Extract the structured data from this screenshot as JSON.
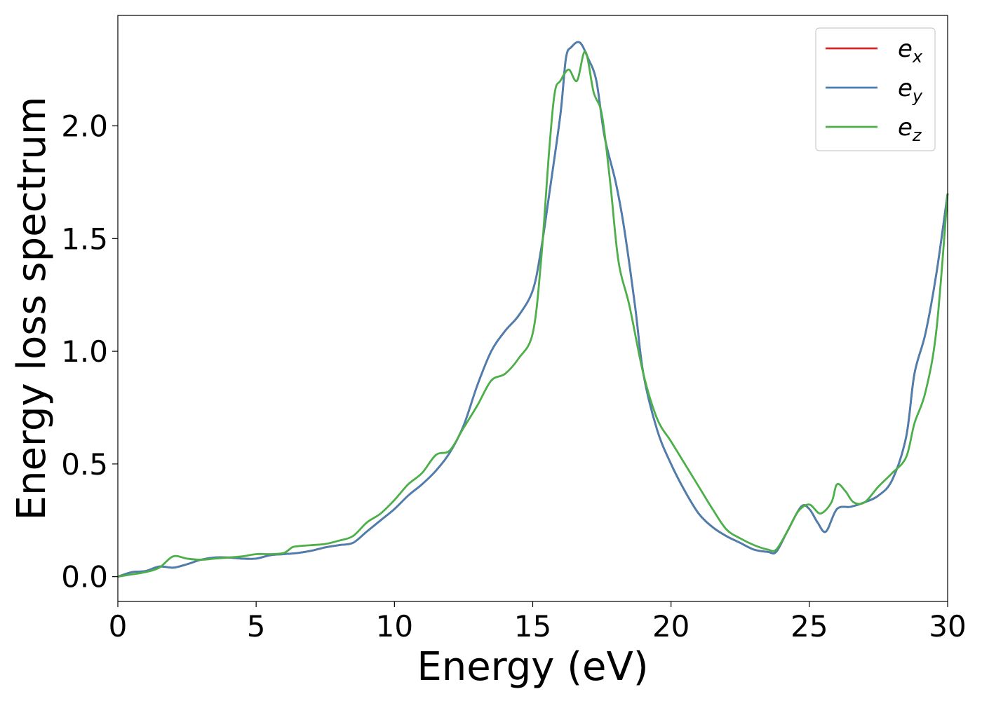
{
  "chart_data": {
    "type": "line",
    "title": "",
    "xlabel": "Energy (eV)",
    "ylabel": "Energy loss spectrum",
    "xlim": [
      0,
      30
    ],
    "ylim": [
      -0.11,
      2.49
    ],
    "xticks": [
      0,
      5,
      10,
      15,
      20,
      25,
      30
    ],
    "xtick_labels": [
      "0",
      "5",
      "10",
      "15",
      "20",
      "25",
      "30"
    ],
    "yticks": [
      0.0,
      0.5,
      1.0,
      1.5,
      2.0
    ],
    "ytick_labels": [
      "0.0",
      "0.5",
      "1.0",
      "1.5",
      "2.0"
    ],
    "grid": false,
    "legend": {
      "placement": "top-right"
    },
    "series": [
      {
        "name": "e_x",
        "label_base": "e",
        "label_sub": "x",
        "color": "#d62728",
        "points": [
          [
            0,
            0.0
          ],
          [
            0.5,
            0.02
          ],
          [
            1,
            0.025
          ],
          [
            1.5,
            0.045
          ],
          [
            2,
            0.04
          ],
          [
            2.5,
            0.055
          ],
          [
            3,
            0.075
          ],
          [
            3.5,
            0.085
          ],
          [
            4,
            0.085
          ],
          [
            4.5,
            0.08
          ],
          [
            5,
            0.08
          ],
          [
            5.5,
            0.095
          ],
          [
            6,
            0.1
          ],
          [
            6.5,
            0.105
          ],
          [
            7,
            0.115
          ],
          [
            7.5,
            0.13
          ],
          [
            8,
            0.14
          ],
          [
            8.5,
            0.15
          ],
          [
            9,
            0.2
          ],
          [
            9.5,
            0.25
          ],
          [
            10,
            0.3
          ],
          [
            10.5,
            0.36
          ],
          [
            11,
            0.41
          ],
          [
            11.5,
            0.47
          ],
          [
            12,
            0.55
          ],
          [
            12.5,
            0.67
          ],
          [
            13,
            0.85
          ],
          [
            13.5,
            1.0
          ],
          [
            14,
            1.09
          ],
          [
            14.5,
            1.16
          ],
          [
            15,
            1.27
          ],
          [
            15.3,
            1.45
          ],
          [
            15.6,
            1.7
          ],
          [
            16,
            2.05
          ],
          [
            16.2,
            2.3
          ],
          [
            16.4,
            2.35
          ],
          [
            16.7,
            2.37
          ],
          [
            17,
            2.3
          ],
          [
            17.3,
            2.2
          ],
          [
            17.6,
            1.95
          ],
          [
            18,
            1.75
          ],
          [
            18.3,
            1.55
          ],
          [
            18.7,
            1.2
          ],
          [
            19,
            0.9
          ],
          [
            19.5,
            0.65
          ],
          [
            20,
            0.5
          ],
          [
            20.5,
            0.38
          ],
          [
            21,
            0.28
          ],
          [
            21.5,
            0.22
          ],
          [
            22,
            0.18
          ],
          [
            22.5,
            0.15
          ],
          [
            23,
            0.12
          ],
          [
            23.5,
            0.11
          ],
          [
            23.8,
            0.11
          ],
          [
            24.2,
            0.2
          ],
          [
            24.7,
            0.31
          ],
          [
            25,
            0.3
          ],
          [
            25.3,
            0.24
          ],
          [
            25.6,
            0.2
          ],
          [
            26,
            0.3
          ],
          [
            26.5,
            0.31
          ],
          [
            27,
            0.33
          ],
          [
            27.5,
            0.36
          ],
          [
            28,
            0.43
          ],
          [
            28.5,
            0.62
          ],
          [
            28.8,
            0.9
          ],
          [
            29.2,
            1.08
          ],
          [
            29.6,
            1.35
          ],
          [
            30,
            1.7
          ]
        ]
      },
      {
        "name": "e_y",
        "label_base": "e",
        "label_sub": "y",
        "color": "#4a7fb0",
        "points": [
          [
            0,
            0.0
          ],
          [
            0.5,
            0.02
          ],
          [
            1,
            0.025
          ],
          [
            1.5,
            0.045
          ],
          [
            2,
            0.04
          ],
          [
            2.5,
            0.055
          ],
          [
            3,
            0.075
          ],
          [
            3.5,
            0.085
          ],
          [
            4,
            0.085
          ],
          [
            4.5,
            0.08
          ],
          [
            5,
            0.08
          ],
          [
            5.5,
            0.095
          ],
          [
            6,
            0.1
          ],
          [
            6.5,
            0.105
          ],
          [
            7,
            0.115
          ],
          [
            7.5,
            0.13
          ],
          [
            8,
            0.14
          ],
          [
            8.5,
            0.15
          ],
          [
            9,
            0.2
          ],
          [
            9.5,
            0.25
          ],
          [
            10,
            0.3
          ],
          [
            10.5,
            0.36
          ],
          [
            11,
            0.41
          ],
          [
            11.5,
            0.47
          ],
          [
            12,
            0.55
          ],
          [
            12.5,
            0.67
          ],
          [
            13,
            0.85
          ],
          [
            13.5,
            1.0
          ],
          [
            14,
            1.09
          ],
          [
            14.5,
            1.16
          ],
          [
            15,
            1.27
          ],
          [
            15.3,
            1.45
          ],
          [
            15.6,
            1.7
          ],
          [
            16,
            2.05
          ],
          [
            16.2,
            2.3
          ],
          [
            16.4,
            2.35
          ],
          [
            16.7,
            2.37
          ],
          [
            17,
            2.3
          ],
          [
            17.3,
            2.2
          ],
          [
            17.6,
            1.95
          ],
          [
            18,
            1.75
          ],
          [
            18.3,
            1.55
          ],
          [
            18.7,
            1.2
          ],
          [
            19,
            0.9
          ],
          [
            19.5,
            0.65
          ],
          [
            20,
            0.5
          ],
          [
            20.5,
            0.38
          ],
          [
            21,
            0.28
          ],
          [
            21.5,
            0.22
          ],
          [
            22,
            0.18
          ],
          [
            22.5,
            0.15
          ],
          [
            23,
            0.12
          ],
          [
            23.5,
            0.11
          ],
          [
            23.8,
            0.11
          ],
          [
            24.2,
            0.2
          ],
          [
            24.7,
            0.31
          ],
          [
            25,
            0.3
          ],
          [
            25.3,
            0.24
          ],
          [
            25.6,
            0.2
          ],
          [
            26,
            0.3
          ],
          [
            26.5,
            0.31
          ],
          [
            27,
            0.33
          ],
          [
            27.5,
            0.36
          ],
          [
            28,
            0.43
          ],
          [
            28.5,
            0.62
          ],
          [
            28.8,
            0.9
          ],
          [
            29.2,
            1.08
          ],
          [
            29.6,
            1.35
          ],
          [
            30,
            1.7
          ]
        ]
      },
      {
        "name": "e_z",
        "label_base": "e",
        "label_sub": "z",
        "color": "#4daf4a",
        "points": [
          [
            0,
            0.0
          ],
          [
            0.5,
            0.01
          ],
          [
            1,
            0.02
          ],
          [
            1.5,
            0.04
          ],
          [
            2,
            0.09
          ],
          [
            2.5,
            0.08
          ],
          [
            3,
            0.075
          ],
          [
            3.5,
            0.08
          ],
          [
            4,
            0.085
          ],
          [
            4.5,
            0.09
          ],
          [
            5,
            0.1
          ],
          [
            5.5,
            0.1
          ],
          [
            6,
            0.105
          ],
          [
            6.3,
            0.13
          ],
          [
            6.5,
            0.135
          ],
          [
            7,
            0.14
          ],
          [
            7.5,
            0.145
          ],
          [
            8,
            0.16
          ],
          [
            8.5,
            0.18
          ],
          [
            9,
            0.24
          ],
          [
            9.5,
            0.28
          ],
          [
            10,
            0.34
          ],
          [
            10.5,
            0.41
          ],
          [
            11,
            0.46
          ],
          [
            11.5,
            0.54
          ],
          [
            12,
            0.56
          ],
          [
            12.5,
            0.66
          ],
          [
            13,
            0.76
          ],
          [
            13.5,
            0.87
          ],
          [
            14,
            0.9
          ],
          [
            14.5,
            0.97
          ],
          [
            15,
            1.08
          ],
          [
            15.3,
            1.4
          ],
          [
            15.6,
            1.9
          ],
          [
            15.8,
            2.15
          ],
          [
            16,
            2.2
          ],
          [
            16.3,
            2.25
          ],
          [
            16.6,
            2.2
          ],
          [
            16.9,
            2.33
          ],
          [
            17.2,
            2.15
          ],
          [
            17.5,
            2.05
          ],
          [
            17.8,
            1.75
          ],
          [
            18.1,
            1.4
          ],
          [
            18.5,
            1.2
          ],
          [
            19,
            0.9
          ],
          [
            19.5,
            0.7
          ],
          [
            20,
            0.6
          ],
          [
            20.5,
            0.5
          ],
          [
            21,
            0.4
          ],
          [
            21.5,
            0.3
          ],
          [
            22,
            0.21
          ],
          [
            22.5,
            0.17
          ],
          [
            23,
            0.14
          ],
          [
            23.5,
            0.12
          ],
          [
            23.8,
            0.12
          ],
          [
            24.2,
            0.2
          ],
          [
            24.6,
            0.29
          ],
          [
            25,
            0.32
          ],
          [
            25.4,
            0.28
          ],
          [
            25.8,
            0.33
          ],
          [
            26,
            0.41
          ],
          [
            26.3,
            0.38
          ],
          [
            26.6,
            0.33
          ],
          [
            27,
            0.33
          ],
          [
            27.5,
            0.4
          ],
          [
            28,
            0.46
          ],
          [
            28.5,
            0.53
          ],
          [
            28.8,
            0.68
          ],
          [
            29.2,
            0.82
          ],
          [
            29.6,
            1.1
          ],
          [
            30,
            1.7
          ]
        ]
      }
    ]
  }
}
